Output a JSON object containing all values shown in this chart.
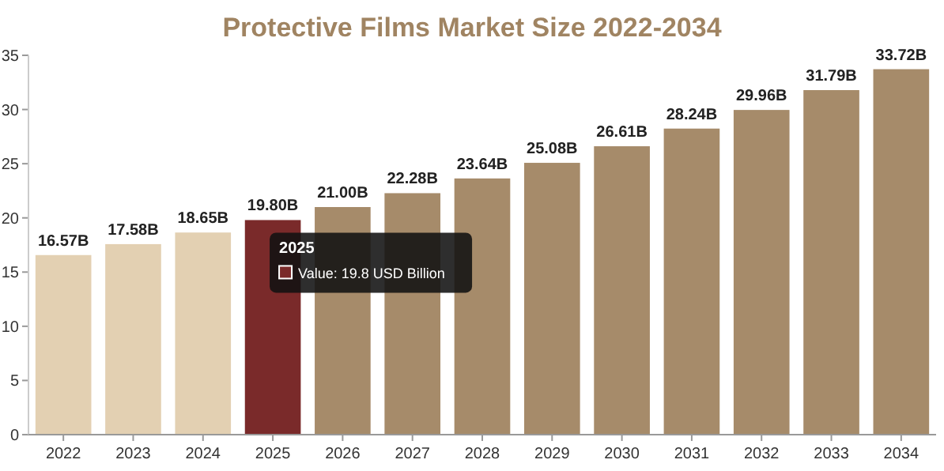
{
  "chart_data": {
    "type": "bar",
    "title": "Protective Films Market Size 2022-2034",
    "categories": [
      "2022",
      "2023",
      "2024",
      "2025",
      "2026",
      "2027",
      "2028",
      "2029",
      "2030",
      "2031",
      "2032",
      "2033",
      "2034"
    ],
    "values": [
      16.57,
      17.58,
      18.65,
      19.8,
      21.0,
      22.28,
      23.64,
      25.08,
      26.61,
      28.24,
      29.96,
      31.79,
      33.72
    ],
    "value_labels": [
      "16.57B",
      "17.58B",
      "18.65B",
      "19.80B",
      "21.00B",
      "22.28B",
      "23.64B",
      "25.08B",
      "26.61B",
      "28.24B",
      "29.96B",
      "31.79B",
      "33.72B"
    ],
    "colors": [
      "#e3d0b2",
      "#e3d0b2",
      "#e3d0b2",
      "#7a2a2a",
      "#a68b6a",
      "#a68b6a",
      "#a68b6a",
      "#a68b6a",
      "#a68b6a",
      "#a68b6a",
      "#a68b6a",
      "#a68b6a",
      "#a68b6a"
    ],
    "ylim": [
      0,
      35
    ],
    "yticks": [
      0,
      5,
      10,
      15,
      20,
      25,
      30,
      35
    ],
    "annotations": [
      {
        "text": "2025",
        "x": "2025",
        "y": 19.8
      },
      "Value: 19.8 USD Billion"
    ]
  }
}
